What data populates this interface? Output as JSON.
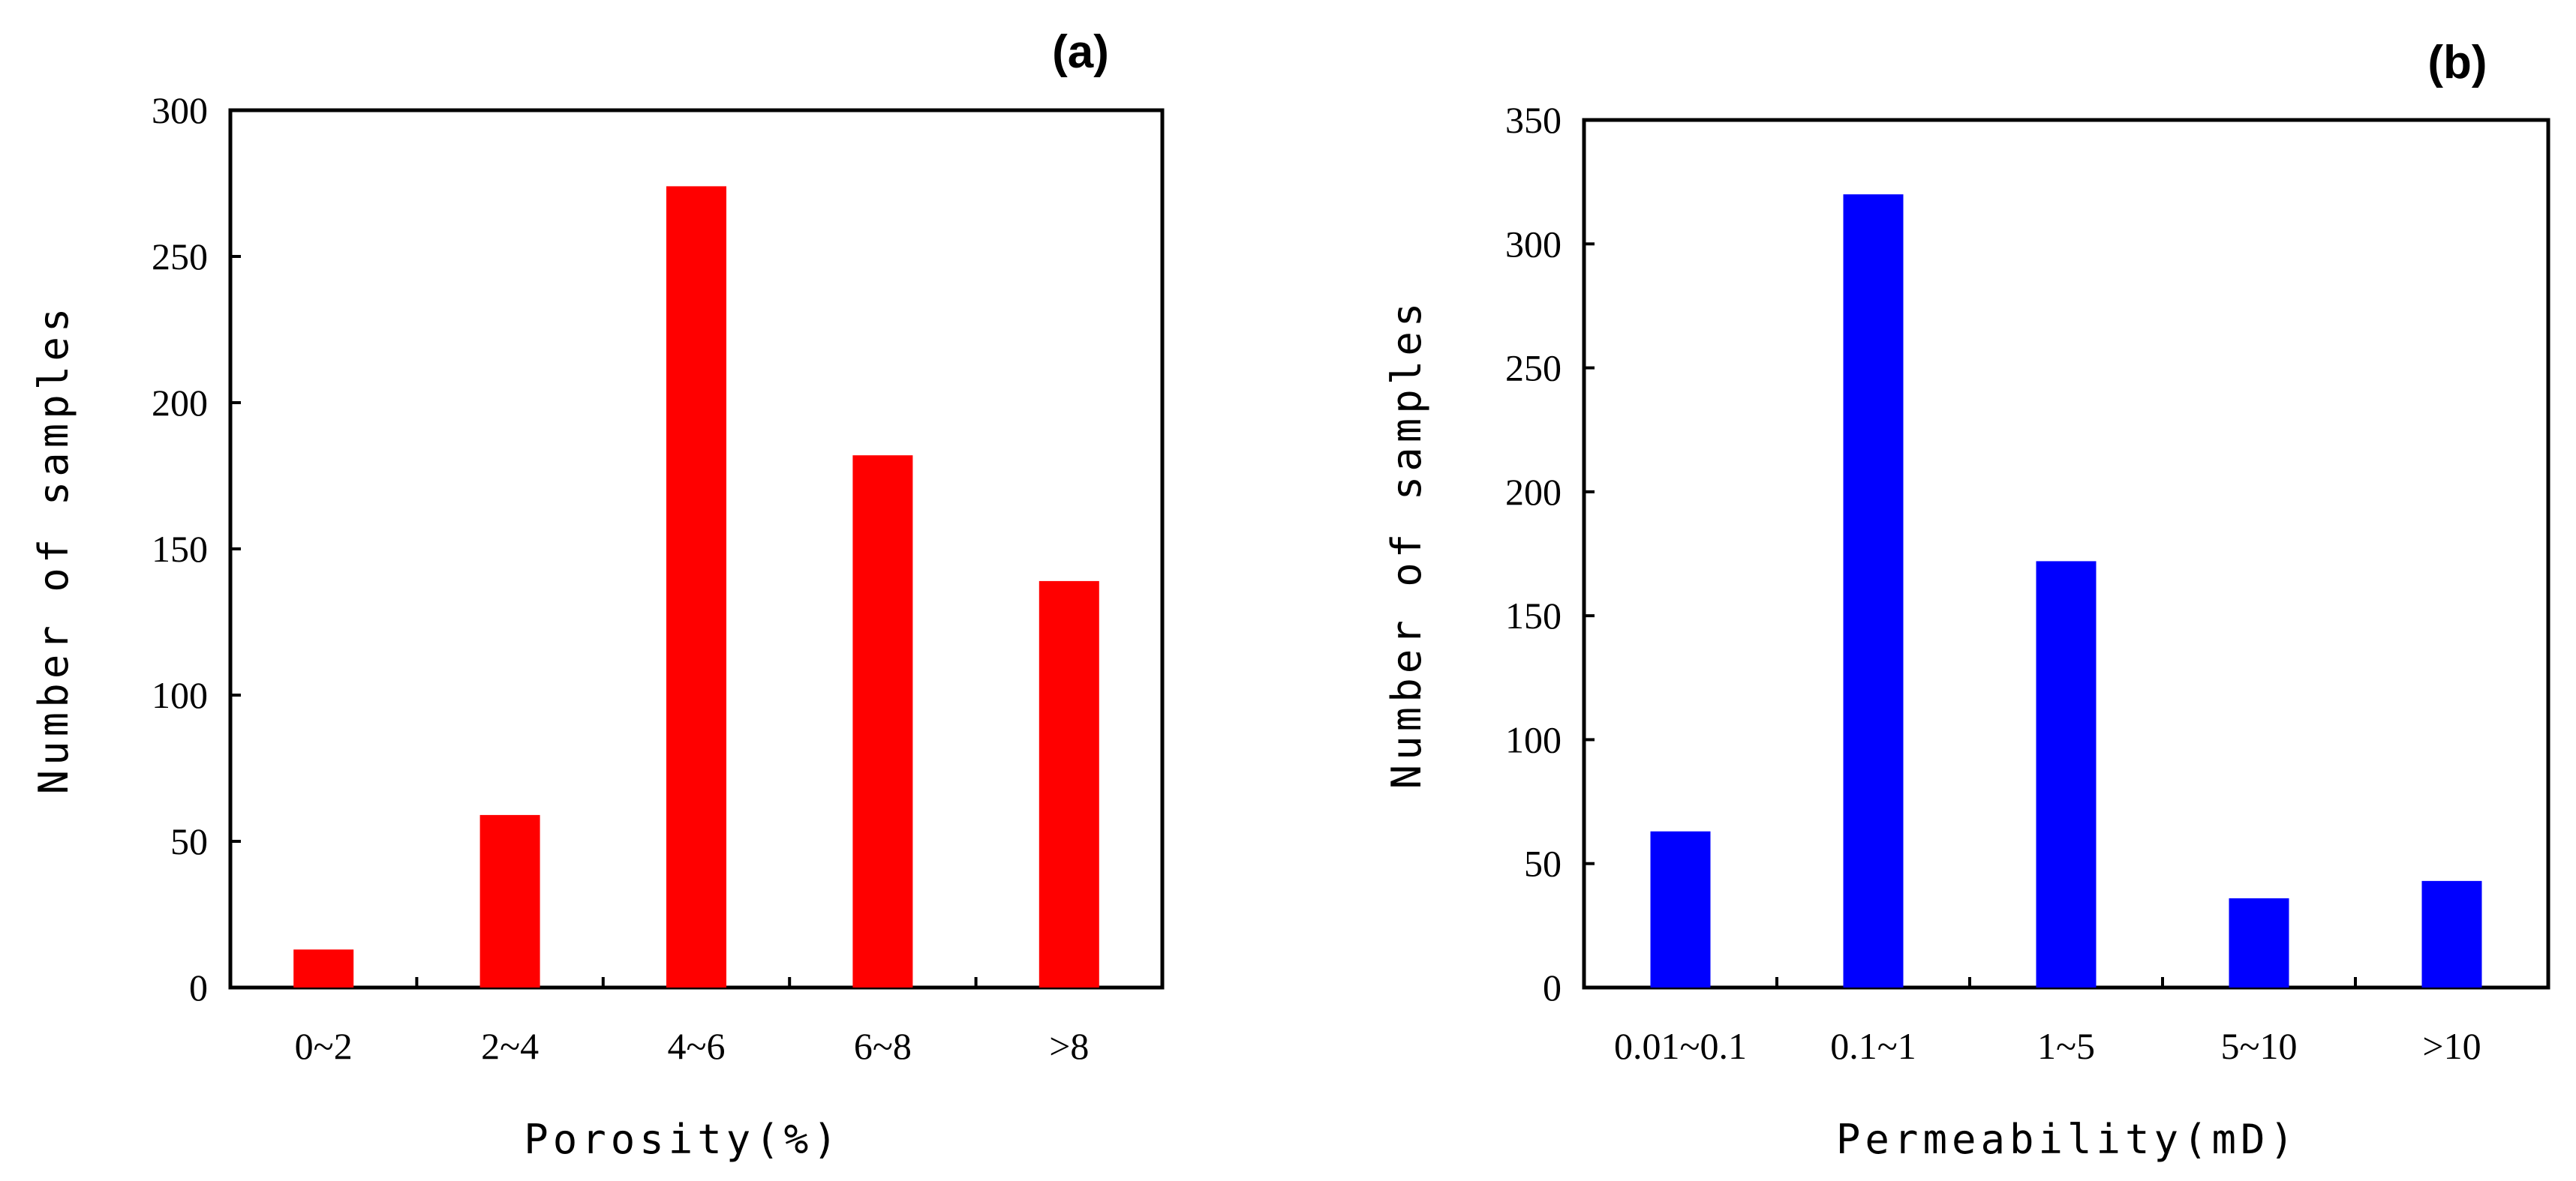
{
  "chart_data": [
    {
      "type": "bar",
      "panel_label": "(a)",
      "categories": [
        "0~2",
        "2~4",
        "4~6",
        "6~8",
        ">8"
      ],
      "values": [
        13,
        59,
        274,
        182,
        139
      ],
      "xlabel": "Porosity(%)",
      "ylabel": "Number of samples",
      "ylim": [
        0,
        300
      ],
      "yticks": [
        0,
        50,
        100,
        150,
        200,
        250,
        300
      ],
      "color": "#ff0000",
      "grid": false
    },
    {
      "type": "bar",
      "panel_label": "(b)",
      "categories": [
        "0.01~0.1",
        "0.1~1",
        "1~5",
        "5~10",
        ">10"
      ],
      "values": [
        63,
        320,
        172,
        36,
        43
      ],
      "xlabel": "Permeability(mD)",
      "ylabel": "Number of samples",
      "ylim": [
        0,
        350
      ],
      "yticks": [
        0,
        50,
        100,
        150,
        200,
        250,
        300,
        350
      ],
      "color": "#0000ff",
      "grid": false
    }
  ]
}
